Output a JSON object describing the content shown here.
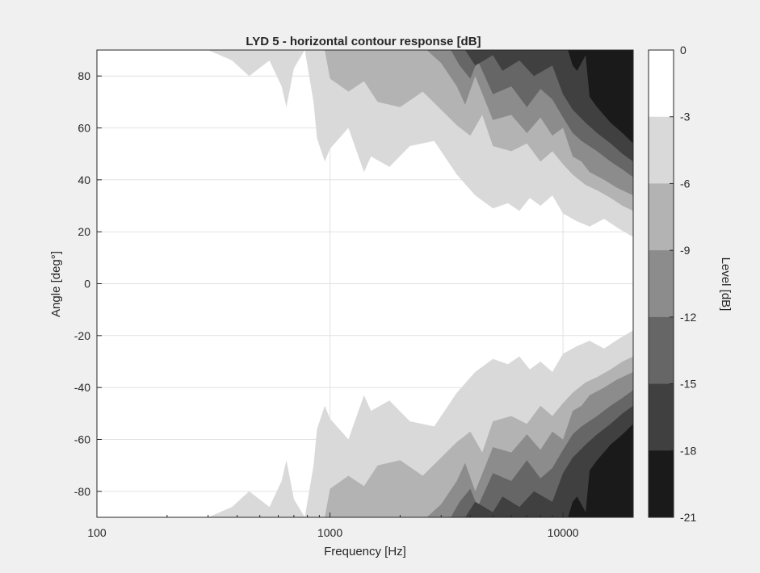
{
  "chart_data": {
    "type": "heatmap",
    "title": "LYD 5 - horizontal contour response [dB]",
    "xlabel": "Frequency [Hz]",
    "ylabel": "Angle [deg°]",
    "x_scale": "log",
    "xlim": [
      100,
      20000
    ],
    "ylim": [
      -90,
      90
    ],
    "x_ticks": [
      100,
      1000,
      10000
    ],
    "x_tick_labels": [
      "100",
      "1000",
      "10000"
    ],
    "y_ticks": [
      80,
      60,
      40,
      20,
      0,
      -20,
      -40,
      -60,
      -80
    ],
    "y_tick_labels": [
      "80",
      "60",
      "40",
      "20",
      "0",
      "-20",
      "-40",
      "-60",
      "-80"
    ],
    "grid": true,
    "colorbar": {
      "label": "Level [dB]",
      "levels": [
        0,
        -3,
        -6,
        -9,
        -12,
        -15,
        -18,
        -21
      ],
      "tick_labels": [
        "0",
        "-3",
        "-6",
        "-9",
        "-12",
        "-15",
        "-18",
        "-21"
      ],
      "colors": [
        "#ffffff",
        "#d9d9d9",
        "#b3b3b3",
        "#8c8c8c",
        "#666666",
        "#404040",
        "#1a1a1a",
        "#000000"
      ]
    },
    "contour_boundaries": [
      {
        "level": -3,
        "freq_hz": [
          300,
          380,
          450,
          550,
          620,
          650,
          700,
          780,
          850,
          880,
          950,
          1000,
          1200,
          1400,
          1500,
          1800,
          2200,
          2800,
          3500,
          4200,
          5000,
          5800,
          6500,
          7200,
          8000,
          9000,
          10000,
          11500,
          13000,
          15000,
          17500,
          20000
        ],
        "angle_deg": [
          90,
          86,
          80,
          86,
          76,
          68,
          83,
          90,
          70,
          56,
          47,
          52,
          60,
          43,
          49,
          45,
          53,
          55,
          42,
          34,
          29,
          31,
          28,
          33,
          30,
          34,
          27,
          24,
          22,
          25,
          21,
          18
        ]
      },
      {
        "level": -6,
        "freq_hz": [
          950,
          1000,
          1200,
          1400,
          1600,
          2000,
          2500,
          3000,
          3500,
          4000,
          4500,
          5000,
          6000,
          7000,
          8000,
          9000,
          10000,
          11000,
          12500,
          14000,
          16000,
          18000,
          20000
        ],
        "angle_deg": [
          90,
          79,
          74,
          78,
          70,
          68,
          74,
          67,
          61,
          57,
          65,
          53,
          51,
          54,
          47,
          51,
          46,
          42,
          38,
          36,
          33,
          30,
          28
        ]
      },
      {
        "level": -9,
        "freq_hz": [
          2600,
          3000,
          3500,
          3800,
          4200,
          5000,
          6000,
          7000,
          8000,
          9000,
          10000,
          11000,
          12000,
          13000,
          15000,
          17000,
          20000
        ],
        "angle_deg": [
          90,
          85,
          76,
          69,
          80,
          63,
          65,
          58,
          64,
          57,
          60,
          49,
          47,
          43,
          40,
          37,
          34
        ]
      },
      {
        "level": -12,
        "freq_hz": [
          3300,
          3600,
          4000,
          4300,
          5000,
          6000,
          7000,
          8000,
          9000,
          10000,
          11000,
          12000,
          14000,
          16000,
          18000,
          20000
        ],
        "angle_deg": [
          90,
          84,
          79,
          86,
          73,
          76,
          68,
          75,
          71,
          64,
          58,
          55,
          51,
          47,
          44,
          41
        ]
      },
      {
        "level": -15,
        "freq_hz": [
          3800,
          4200,
          5000,
          5500,
          6500,
          7500,
          9000,
          10000,
          11000,
          12500,
          14000,
          16000,
          18000,
          20000
        ],
        "angle_deg": [
          90,
          84,
          88,
          82,
          86,
          80,
          84,
          73,
          67,
          62,
          58,
          54,
          50,
          47
        ]
      },
      {
        "level": -18,
        "freq_hz": [
          10500,
          11000,
          11500,
          12500,
          13000,
          14000,
          16000,
          18000,
          20000
        ],
        "angle_deg": [
          90,
          84,
          82,
          88,
          72,
          68,
          62,
          58,
          54
        ]
      }
    ]
  }
}
